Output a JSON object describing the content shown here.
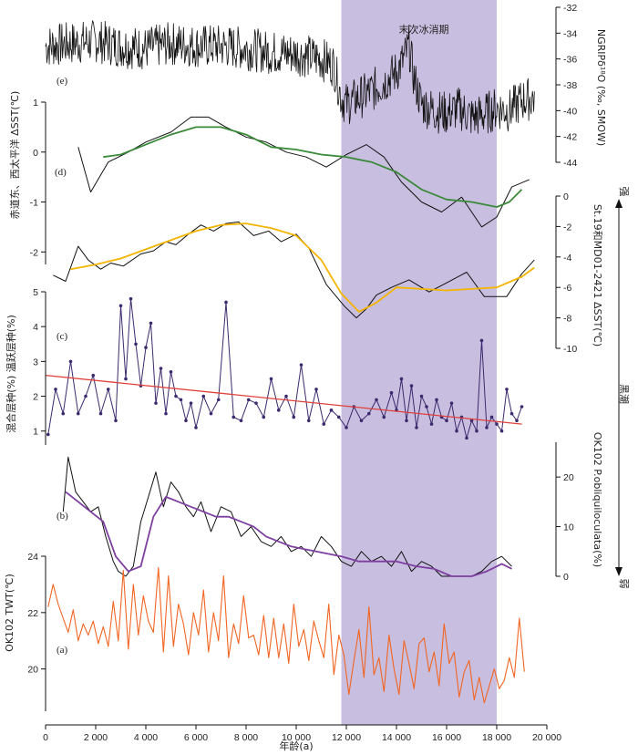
{
  "figure": {
    "xlabel": "年龄(a)",
    "shade_label": "末次冰消期",
    "shade_range": [
      11800,
      18000
    ],
    "x_ticks": [
      0,
      2000,
      4000,
      6000,
      8000,
      10000,
      12000,
      14000,
      16000,
      18000,
      20000
    ],
    "x_tick_labels": [
      "0",
      "2 000",
      "4 000",
      "6 000",
      "8 000",
      "10 000",
      "12 000",
      "14 000",
      "16 000",
      "18 000",
      "20 000"
    ],
    "current_arrow": {
      "top": "强",
      "middle": "黑潮",
      "bottom": "弱"
    },
    "colors": {
      "shade": "#c8bedf",
      "black_line": "#111111",
      "green": "#3a8a3a",
      "yellow": "#f4b400",
      "purple": "#3c2a6e",
      "red_trend": "#e0403a",
      "violet_smooth": "#7e3fa0",
      "orange": "#f26522"
    }
  },
  "chart_data": [
    {
      "panel": "(e)",
      "type": "line",
      "ylabel": "NGRIPδ¹⁸O (‰, SMOW)",
      "yticks": [
        -32,
        -34,
        -36,
        -38,
        -40,
        -42,
        -44
      ],
      "ylim": [
        -44,
        -32
      ],
      "series": [
        {
          "values_desc": "NGRIP δ18O, noisy record",
          "x": [
            0,
            1000,
            2000,
            3000,
            4000,
            5000,
            6000,
            7000,
            8000,
            9000,
            10000,
            11000,
            11500,
            11800,
            12000,
            12500,
            13000,
            13500,
            14000,
            14300,
            14500,
            14700,
            15000,
            15500,
            16000,
            16500,
            17000,
            17500,
            18000,
            18500,
            19000,
            19500
          ],
          "y": [
            -35.0,
            -34.8,
            -34.6,
            -35.0,
            -35.2,
            -34.8,
            -35.0,
            -35.0,
            -35.2,
            -35.5,
            -35.6,
            -36.0,
            -36.5,
            -39.0,
            -39.5,
            -39.0,
            -38.5,
            -37.8,
            -37.0,
            -36.0,
            -35.0,
            -37.5,
            -39.5,
            -40.0,
            -40.2,
            -39.8,
            -40.5,
            -40.3,
            -39.8,
            -40.0,
            -39.2,
            -39.0
          ]
        }
      ]
    },
    {
      "panel": "(d)",
      "type": "line",
      "ylabel_left": "赤道东、西太平洋 ΔSST(℃)",
      "ylabel_right": "St.19和MD01-2421 ΔSST(℃)",
      "left_yticks": [
        1,
        0,
        -1,
        -2
      ],
      "left_ylim": [
        -2.25,
        1.0
      ],
      "right_yticks": [
        0,
        -2,
        -4,
        -6,
        -8,
        -10
      ],
      "right_ylim": [
        -10,
        0
      ],
      "series": [
        {
          "name_desc": "ΔSST east-west Pacific (black)",
          "x": [
            1300,
            1800,
            2500,
            3300,
            4000,
            5000,
            5800,
            6500,
            7200,
            8000,
            8800,
            9600,
            10400,
            11200,
            12000,
            12800,
            13500,
            14200,
            15000,
            15800,
            16600,
            17400,
            18000,
            18600,
            19300
          ],
          "y": [
            0.1,
            -0.8,
            -0.2,
            0.0,
            0.2,
            0.4,
            0.7,
            0.7,
            0.5,
            0.3,
            0.2,
            0.0,
            -0.1,
            -0.3,
            -0.05,
            0.15,
            -0.1,
            -0.6,
            -1.0,
            -1.2,
            -0.9,
            -1.5,
            -1.3,
            -0.7,
            -0.55
          ]
        },
        {
          "name_desc": "smoothed (green)",
          "x": [
            2300,
            3000,
            4000,
            5000,
            6000,
            7000,
            8000,
            9000,
            10000,
            11000,
            12000,
            13000,
            14000,
            15000,
            16000,
            17000,
            18000,
            18500,
            19000
          ],
          "y": [
            -0.1,
            -0.05,
            0.15,
            0.35,
            0.5,
            0.5,
            0.35,
            0.1,
            0.05,
            -0.05,
            -0.1,
            -0.2,
            -0.4,
            -0.75,
            -0.95,
            -1.0,
            -1.1,
            -1.0,
            -0.75
          ]
        },
        {
          "name_desc": "St.19/MD01-2421 ΔSST (black)",
          "x": [
            300,
            800,
            1300,
            1700,
            2200,
            2600,
            3100,
            3800,
            4300,
            4800,
            5200,
            5700,
            6200,
            6700,
            7200,
            7700,
            8300,
            8900,
            9400,
            10000,
            10500,
            11200,
            11900,
            12400,
            12800,
            13200,
            13800,
            14500,
            15300,
            16000,
            16800,
            17500,
            18400,
            19000,
            19500
          ],
          "y": [
            -5.2,
            -5.6,
            -3.3,
            -4.2,
            -4.8,
            -4.4,
            -4.6,
            -3.8,
            -3.6,
            -3.0,
            -3.2,
            -2.5,
            -1.9,
            -2.3,
            -1.8,
            -1.7,
            -2.6,
            -2.3,
            -3.0,
            -2.5,
            -3.4,
            -5.8,
            -7.2,
            -8.0,
            -7.4,
            -6.5,
            -6.0,
            -5.5,
            -6.3,
            -5.7,
            -5.0,
            -6.6,
            -6.6,
            -5.1,
            -4.2
          ]
        },
        {
          "name_desc": "smoothed (yellow)",
          "x": [
            1000,
            2000,
            3000,
            4000,
            5000,
            6000,
            7000,
            8000,
            9000,
            10000,
            11000,
            11800,
            12500,
            13200,
            14000,
            15000,
            16000,
            17000,
            18000,
            19000,
            19500
          ],
          "y": [
            -4.8,
            -4.5,
            -4.1,
            -3.5,
            -2.9,
            -2.3,
            -1.9,
            -1.8,
            -2.1,
            -2.6,
            -4.2,
            -6.4,
            -7.6,
            -7.0,
            -6.0,
            -6.1,
            -6.2,
            -6.1,
            -6.0,
            -5.3,
            -4.7
          ]
        }
      ]
    },
    {
      "panel": "(c)",
      "type": "line",
      "ylabel": "混合层种(%) 温跃层种(%)",
      "yticks": [
        1,
        2,
        3,
        4,
        5
      ],
      "ylim": [
        0.6,
        5.0
      ],
      "series": [
        {
          "name_desc": "ratio (purple with dots)",
          "x": [
            100,
            400,
            700,
            1000,
            1300,
            1600,
            1900,
            2200,
            2500,
            2800,
            3000,
            3200,
            3400,
            3600,
            3800,
            4000,
            4200,
            4400,
            4600,
            4800,
            5000,
            5200,
            5400,
            5600,
            5800,
            6000,
            6300,
            6600,
            6900,
            7200,
            7500,
            7800,
            8100,
            8400,
            8700,
            9000,
            9300,
            9600,
            9900,
            10200,
            10500,
            10800,
            11100,
            11400,
            11700,
            12000,
            12300,
            12600,
            12900,
            13200,
            13500,
            13800,
            14000,
            14200,
            14400,
            14600,
            14800,
            15000,
            15200,
            15400,
            15600,
            15800,
            16000,
            16200,
            16400,
            16600,
            16800,
            17000,
            17200,
            17400,
            17600,
            17800,
            18000,
            18200,
            18400,
            18600,
            18800,
            19000
          ],
          "y": [
            0.9,
            2.2,
            1.5,
            3.0,
            1.5,
            2.0,
            2.6,
            1.5,
            2.2,
            1.3,
            4.6,
            2.5,
            4.8,
            3.5,
            2.3,
            3.4,
            4.1,
            1.8,
            2.8,
            1.5,
            2.7,
            2.0,
            1.9,
            1.3,
            1.8,
            1.1,
            2.0,
            1.5,
            1.9,
            4.7,
            1.4,
            1.3,
            1.9,
            1.8,
            1.4,
            2.5,
            1.6,
            2.0,
            1.4,
            2.9,
            1.3,
            2.2,
            1.2,
            1.6,
            1.4,
            1.1,
            1.7,
            1.3,
            1.5,
            1.9,
            1.4,
            2.1,
            1.6,
            2.5,
            1.3,
            2.3,
            1.1,
            2.0,
            1.7,
            1.2,
            1.9,
            1.4,
            1.3,
            1.8,
            1.0,
            1.4,
            0.8,
            1.3,
            1.0,
            3.6,
            1.1,
            1.4,
            1.2,
            1.0,
            2.2,
            1.5,
            1.3,
            1.7
          ]
        },
        {
          "name_desc": "linear trend (red)",
          "x": [
            0,
            19000
          ],
          "y": [
            2.6,
            1.2
          ]
        }
      ]
    },
    {
      "panel": "(b)",
      "type": "line",
      "ylabel": "OK102 P.obliquiloculata(%)",
      "yticks": [
        0,
        10,
        20
      ],
      "ylim": [
        0,
        27
      ],
      "series": [
        {
          "name_desc": "P. obliquiloculata (black)",
          "x": [
            700,
            900,
            1200,
            1500,
            1800,
            2100,
            2400,
            2700,
            2900,
            3200,
            3500,
            3800,
            4100,
            4400,
            4700,
            5000,
            5300,
            5600,
            5900,
            6200,
            6600,
            7000,
            7400,
            7800,
            8200,
            8600,
            9000,
            9400,
            9800,
            10200,
            10600,
            11000,
            11400,
            11800,
            12200,
            12600,
            13000,
            13400,
            13800,
            14200,
            14600,
            15000,
            15400,
            15800,
            16200,
            16600,
            17000,
            17400,
            17800,
            18200,
            18600
          ],
          "y": [
            13,
            24,
            17,
            15,
            13,
            14,
            8,
            3,
            1,
            0,
            2,
            11,
            16,
            21,
            14,
            19,
            17,
            14,
            12,
            15,
            9,
            14,
            13,
            8,
            10,
            7,
            6,
            8,
            5,
            6,
            4,
            8,
            6,
            3,
            2,
            5,
            3,
            4,
            2,
            5,
            1,
            3,
            2,
            0,
            0,
            0,
            0,
            1,
            3,
            4,
            2
          ]
        },
        {
          "name_desc": "smoothed (violet)",
          "x": [
            800,
            1300,
            1800,
            2300,
            2800,
            3300,
            3800,
            4300,
            4800,
            5300,
            5800,
            6300,
            6800,
            7300,
            7800,
            8300,
            8800,
            9300,
            9800,
            10300,
            10800,
            11300,
            11800,
            12500,
            13200,
            14000,
            14800,
            15500,
            16200,
            17000,
            17600,
            18200,
            18600
          ],
          "y": [
            17,
            15,
            13,
            11,
            4,
            1,
            2,
            12,
            16,
            15,
            14,
            13,
            12,
            12,
            11,
            10,
            8,
            7,
            6,
            5.5,
            5,
            4.5,
            4,
            3,
            3,
            3,
            2,
            1.5,
            0,
            0,
            1,
            2.5,
            1.5
          ]
        }
      ]
    },
    {
      "panel": "(a)",
      "type": "line",
      "ylabel": "OK102 TWT(℃)",
      "yticks": [
        20,
        22,
        24
      ],
      "ylim": [
        18.5,
        24
      ],
      "series": [
        {
          "name_desc": "TWT (orange)",
          "x": [
            100,
            300,
            500,
            700,
            900,
            1100,
            1300,
            1500,
            1700,
            1900,
            2100,
            2300,
            2500,
            2700,
            2900,
            3100,
            3300,
            3500,
            3700,
            3900,
            4100,
            4300,
            4500,
            4700,
            4900,
            5100,
            5300,
            5500,
            5700,
            5900,
            6100,
            6300,
            6500,
            6700,
            6900,
            7100,
            7300,
            7500,
            7700,
            7900,
            8100,
            8300,
            8500,
            8700,
            8900,
            9100,
            9300,
            9500,
            9700,
            9900,
            10100,
            10300,
            10500,
            10700,
            10900,
            11100,
            11300,
            11500,
            11700,
            11900,
            12100,
            12300,
            12500,
            12700,
            12900,
            13100,
            13300,
            13500,
            13700,
            13900,
            14100,
            14300,
            14500,
            14700,
            14900,
            15100,
            15300,
            15500,
            15700,
            15900,
            16100,
            16300,
            16500,
            16700,
            16900,
            17100,
            17300,
            17500,
            17700,
            17900,
            18100,
            18300,
            18500,
            18700,
            18900,
            19100
          ],
          "y": [
            22.2,
            23.0,
            22.3,
            21.8,
            21.3,
            22.1,
            21.0,
            21.6,
            21.2,
            21.7,
            20.9,
            21.5,
            20.8,
            22.4,
            21.0,
            23.5,
            20.7,
            23.0,
            21.2,
            22.6,
            21.7,
            21.3,
            23.6,
            20.6,
            23.3,
            20.8,
            22.3,
            21.6,
            20.5,
            22.0,
            21.2,
            22.8,
            20.6,
            22.0,
            21.0,
            23.3,
            20.4,
            21.6,
            20.9,
            22.6,
            21.1,
            21.2,
            20.5,
            21.9,
            20.4,
            21.8,
            20.4,
            21.6,
            20.2,
            22.3,
            20.8,
            21.4,
            20.3,
            21.7,
            21.0,
            20.4,
            22.3,
            19.8,
            21.2,
            20.5,
            19.1,
            20.3,
            21.4,
            19.7,
            22.2,
            19.8,
            20.4,
            19.2,
            21.2,
            20.0,
            19.1,
            21.0,
            20.2,
            19.3,
            20.9,
            21.1,
            19.9,
            20.6,
            19.4,
            21.6,
            20.2,
            20.6,
            19.0,
            19.9,
            20.3,
            18.9,
            19.7,
            18.8,
            19.4,
            20.0,
            19.3,
            19.6,
            20.4,
            19.7,
            21.8,
            19.9
          ]
        }
      ]
    }
  ]
}
